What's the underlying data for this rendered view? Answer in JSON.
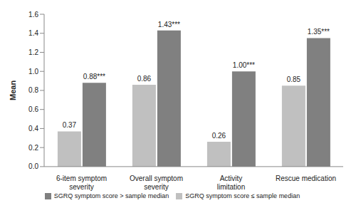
{
  "chart_data": {
    "type": "bar",
    "categories": [
      "6-item symptom severity",
      "Overall symptom severity",
      "Activity limitation",
      "Rescue medication"
    ],
    "series": [
      {
        "name": "SGRQ symptom score ≤ sample median",
        "color": "#c0c0c0",
        "values": [
          0.37,
          0.86,
          0.26,
          0.85
        ]
      },
      {
        "name": "SGRQ symptom score > sample median",
        "color": "#808080",
        "values": [
          0.88,
          1.43,
          1.0,
          1.35
        ],
        "value_labels": [
          "0.88***",
          "1.43***",
          "1.00***",
          "1.35***"
        ]
      }
    ],
    "y_label": "Mean",
    "ylim": [
      0,
      1.6
    ],
    "yticks": [
      {
        "value": 0,
        "label": "0.0"
      },
      0.2,
      0.4,
      0.6,
      0.8,
      {
        "value": 1,
        "label": "1.0"
      },
      1.2,
      1.4,
      1.6
    ],
    "grid": false,
    "data_labels": true,
    "legend": "bottom"
  }
}
